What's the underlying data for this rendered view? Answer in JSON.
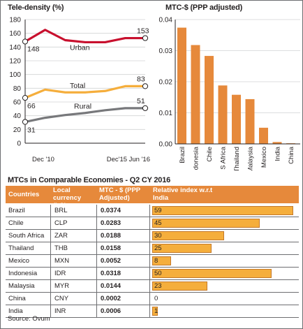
{
  "chart_data": [
    {
      "type": "line",
      "title": "Tele-density (%)",
      "x_tick_labels": [
        "Dec '10",
        "Dec'15 Jun '16"
      ],
      "y_ticks": [
        0,
        20,
        40,
        60,
        80,
        100,
        120,
        140,
        160,
        180
      ],
      "ylim": [
        0,
        180
      ],
      "x": [
        0,
        1,
        2,
        3,
        4,
        5,
        6
      ],
      "series": [
        {
          "name": "Urban",
          "values": [
            148,
            165,
            150,
            147,
            147,
            153,
            153
          ],
          "start_label": "148",
          "end_label": "153",
          "color": "#c8102e"
        },
        {
          "name": "Total",
          "values": [
            66,
            78,
            74,
            74,
            76,
            83,
            83
          ],
          "start_label": "66",
          "end_label": "83",
          "color": "#f5ae3c"
        },
        {
          "name": "Rural",
          "values": [
            31,
            37,
            41,
            44,
            48,
            51,
            51
          ],
          "start_label": "31",
          "end_label": "51",
          "color": "#77787b"
        }
      ]
    },
    {
      "type": "bar",
      "title": "MTC-$ (PPP adjusted)",
      "categories": [
        "Brazil",
        "Indonesia",
        "Chile",
        "S Africa",
        "Thailand",
        "Malaysia",
        "Mexico",
        "India",
        "China"
      ],
      "values": [
        0.0374,
        0.0318,
        0.0283,
        0.0188,
        0.0158,
        0.0144,
        0.0052,
        0.0006,
        0.0002
      ],
      "y_ticks": [
        "0.00",
        "0.01",
        "0.02",
        "0.03",
        "0.04"
      ],
      "ylim": [
        0,
        0.04
      ],
      "color": "#e6893b"
    },
    {
      "type": "table",
      "title": "MTCs in Comparable Economies - Q2 CY 2016",
      "headers": [
        "Countries",
        "Local currency (LC)",
        "MTC - $ (PPP Adjusted)",
        "Relative index w.r.t India"
      ],
      "rows": [
        {
          "country": "Brazil",
          "currency": "BRL",
          "mtc": "0.0374",
          "index": "59",
          "index_value": 59
        },
        {
          "country": "Chile",
          "currency": "CLP",
          "mtc": "0.0283",
          "index": "45",
          "index_value": 45
        },
        {
          "country": "South Africa",
          "currency": "ZAR",
          "mtc": "0.0188",
          "index": "30",
          "index_value": 30
        },
        {
          "country": "Thailand",
          "currency": "THB",
          "mtc": "0.0158",
          "index": "25",
          "index_value": 25
        },
        {
          "country": "Mexico",
          "currency": "MXN",
          "mtc": "0.0052",
          "index": "8",
          "index_value": 8
        },
        {
          "country": "Indonesia",
          "currency": "IDR",
          "mtc": "0.0318",
          "index": "50",
          "index_value": 50
        },
        {
          "country": "Malaysia",
          "currency": "MYR",
          "mtc": "0.0144",
          "index": "23",
          "index_value": 23
        },
        {
          "country": "China",
          "currency": "CNY",
          "mtc": "0.0002",
          "index": "0",
          "index_value": 0
        },
        {
          "country": "India",
          "currency": "INR",
          "mtc": "0.0006",
          "index": "1",
          "index_value": 1
        }
      ],
      "bar_color": "#f5ae3c"
    }
  ],
  "source": "Source: Ovum"
}
